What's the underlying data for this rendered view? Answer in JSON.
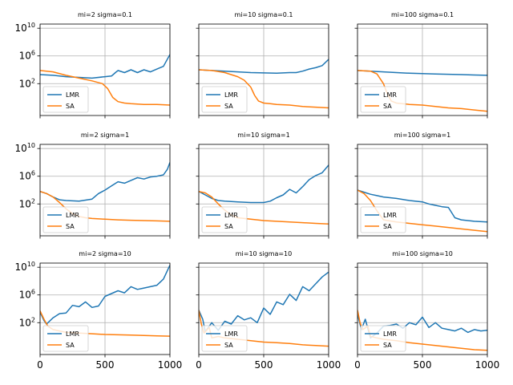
{
  "figure": {
    "background": "#ffffff",
    "series_colors": {
      "LMR": "#1f77b4",
      "SA": "#ff7f0e"
    },
    "grid_color": "#b0b0b0"
  },
  "chart_data": [
    {
      "type": "line",
      "title": "mi=2 sigma=0.1",
      "xlim": [
        0,
        1000
      ],
      "ylim_log10": [
        -2.6,
        10.6
      ],
      "yscale": "log",
      "grid": true,
      "legend": "lower-left",
      "x_ticks": [
        0,
        500,
        1000
      ],
      "x_tick_labels": [
        "0",
        "500",
        "1000"
      ],
      "y_ticks": [
        2,
        6,
        10
      ],
      "series": [
        {
          "name": "LMR",
          "x": [
            0,
            100,
            200,
            300,
            400,
            500,
            550,
            580,
            600,
            650,
            700,
            750,
            800,
            850,
            900,
            950,
            1000
          ],
          "log10_y": [
            3.3,
            3.2,
            3.0,
            2.9,
            2.8,
            3.0,
            3.1,
            3.6,
            3.9,
            3.6,
            4.0,
            3.6,
            4.0,
            3.7,
            4.1,
            4.5,
            6.2
          ]
        },
        {
          "name": "SA",
          "x": [
            0,
            100,
            200,
            300,
            400,
            480,
            520,
            560,
            600,
            650,
            700,
            800,
            900,
            1000
          ],
          "log10_y": [
            3.9,
            3.7,
            3.2,
            2.8,
            2.4,
            2.0,
            1.3,
            0.0,
            -0.6,
            -0.8,
            -0.9,
            -1.0,
            -1.0,
            -1.1
          ]
        }
      ]
    },
    {
      "type": "line",
      "title": "mi=10 sigma=0.1",
      "xlim": [
        0,
        1000
      ],
      "ylim_log10": [
        -2.6,
        10.6
      ],
      "yscale": "log",
      "grid": true,
      "legend": "lower-left",
      "x_ticks": [
        0,
        500,
        1000
      ],
      "x_tick_labels": [
        "0",
        "500",
        "1000"
      ],
      "y_ticks": [
        2,
        6,
        10
      ],
      "series": [
        {
          "name": "LMR",
          "x": [
            0,
            100,
            200,
            300,
            400,
            500,
            600,
            700,
            750,
            800,
            850,
            900,
            950,
            1000
          ],
          "log10_y": [
            4.0,
            3.9,
            3.8,
            3.7,
            3.6,
            3.55,
            3.5,
            3.6,
            3.6,
            3.8,
            4.1,
            4.3,
            4.6,
            5.5
          ]
        },
        {
          "name": "SA",
          "x": [
            0,
            100,
            200,
            300,
            350,
            400,
            430,
            460,
            500,
            550,
            600,
            700,
            800,
            900,
            1000
          ],
          "log10_y": [
            4.0,
            3.9,
            3.6,
            3.0,
            2.5,
            1.5,
            0.3,
            -0.5,
            -0.8,
            -0.9,
            -1.0,
            -1.1,
            -1.3,
            -1.4,
            -1.5
          ]
        }
      ]
    },
    {
      "type": "line",
      "title": "mi=100 sigma=0.1",
      "xlim": [
        0,
        1000
      ],
      "ylim_log10": [
        -2.6,
        10.6
      ],
      "yscale": "log",
      "grid": true,
      "legend": "lower-left",
      "x_ticks": [
        0,
        500,
        1000
      ],
      "x_tick_labels": [
        "0",
        "500",
        "1000"
      ],
      "y_ticks": [
        2,
        6,
        10
      ],
      "series": [
        {
          "name": "LMR",
          "x": [
            0,
            100,
            200,
            300,
            400,
            500,
            600,
            700,
            800,
            900,
            1000
          ],
          "log10_y": [
            3.9,
            3.8,
            3.7,
            3.6,
            3.5,
            3.45,
            3.4,
            3.35,
            3.3,
            3.25,
            3.2
          ]
        },
        {
          "name": "SA",
          "x": [
            0,
            100,
            150,
            200,
            230,
            260,
            300,
            400,
            500,
            600,
            700,
            800,
            900,
            1000
          ],
          "log10_y": [
            3.9,
            3.8,
            3.4,
            2.0,
            0.5,
            -0.5,
            -0.8,
            -1.0,
            -1.1,
            -1.3,
            -1.5,
            -1.6,
            -1.8,
            -2.0
          ]
        }
      ]
    },
    {
      "type": "line",
      "title": "mi=2 sigma=1",
      "xlim": [
        0,
        1000
      ],
      "ylim_log10": [
        -2.6,
        10.6
      ],
      "yscale": "log",
      "grid": true,
      "legend": "lower-left",
      "x_ticks": [
        0,
        500,
        1000
      ],
      "x_tick_labels": [
        "0",
        "500",
        "1000"
      ],
      "y_ticks": [
        2,
        6,
        10
      ],
      "series": [
        {
          "name": "LMR",
          "x": [
            0,
            50,
            100,
            150,
            200,
            300,
            400,
            450,
            500,
            550,
            600,
            650,
            700,
            750,
            800,
            850,
            900,
            950,
            980,
            1000
          ],
          "log10_y": [
            3.8,
            3.5,
            3.0,
            2.6,
            2.5,
            2.4,
            2.7,
            3.5,
            4.0,
            4.6,
            5.2,
            5.0,
            5.4,
            5.8,
            5.6,
            5.9,
            6.0,
            6.2,
            7.0,
            8.0
          ]
        },
        {
          "name": "SA",
          "x": [
            0,
            50,
            100,
            150,
            200,
            250,
            300,
            350,
            400,
            500,
            600,
            700,
            800,
            900,
            1000
          ],
          "log10_y": [
            3.8,
            3.5,
            3.0,
            2.2,
            1.3,
            0.6,
            0.2,
            0.0,
            -0.1,
            -0.2,
            -0.3,
            -0.35,
            -0.4,
            -0.45,
            -0.5
          ]
        }
      ]
    },
    {
      "type": "line",
      "title": "mi=10 sigma=1",
      "xlim": [
        0,
        1000
      ],
      "ylim_log10": [
        -2.6,
        10.6
      ],
      "yscale": "log",
      "grid": true,
      "legend": "lower-left",
      "x_ticks": [
        0,
        500,
        1000
      ],
      "x_tick_labels": [
        "0",
        "500",
        "1000"
      ],
      "y_ticks": [
        2,
        6,
        10
      ],
      "series": [
        {
          "name": "LMR",
          "x": [
            0,
            50,
            100,
            150,
            200,
            300,
            400,
            500,
            550,
            600,
            650,
            700,
            750,
            800,
            850,
            900,
            950,
            1000
          ],
          "log10_y": [
            3.8,
            3.3,
            2.8,
            2.5,
            2.4,
            2.3,
            2.2,
            2.2,
            2.4,
            2.9,
            3.3,
            4.1,
            3.6,
            4.5,
            5.5,
            6.1,
            6.5,
            7.6
          ]
        },
        {
          "name": "SA",
          "x": [
            0,
            50,
            100,
            150,
            200,
            250,
            300,
            400,
            500,
            600,
            700,
            800,
            900,
            1000
          ],
          "log10_y": [
            3.8,
            3.6,
            3.0,
            2.0,
            1.1,
            0.4,
            0.0,
            -0.2,
            -0.4,
            -0.5,
            -0.6,
            -0.7,
            -0.8,
            -0.9
          ]
        }
      ]
    },
    {
      "type": "line",
      "title": "mi=100 sigma=1",
      "xlim": [
        0,
        1000
      ],
      "ylim_log10": [
        -2.6,
        10.6
      ],
      "yscale": "log",
      "grid": true,
      "legend": "lower-left",
      "x_ticks": [
        0,
        500,
        1000
      ],
      "x_tick_labels": [
        "0",
        "500",
        "1000"
      ],
      "y_ticks": [
        2,
        6,
        10
      ],
      "series": [
        {
          "name": "LMR",
          "x": [
            0,
            50,
            100,
            150,
            200,
            300,
            400,
            500,
            550,
            600,
            650,
            700,
            750,
            800,
            900,
            1000
          ],
          "log10_y": [
            4.0,
            3.7,
            3.4,
            3.2,
            3.0,
            2.8,
            2.5,
            2.3,
            2.0,
            1.8,
            1.6,
            1.5,
            0.0,
            -0.3,
            -0.5,
            -0.6
          ]
        },
        {
          "name": "SA",
          "x": [
            0,
            50,
            100,
            150,
            200,
            300,
            400,
            500,
            600,
            700,
            800,
            900,
            1000
          ],
          "log10_y": [
            4.0,
            3.5,
            2.5,
            1.0,
            -0.3,
            -0.6,
            -0.8,
            -1.0,
            -1.2,
            -1.4,
            -1.6,
            -1.8,
            -2.0
          ]
        }
      ]
    },
    {
      "type": "line",
      "title": "mi=2 sigma=10",
      "xlim": [
        0,
        1000
      ],
      "ylim_log10": [
        -2.6,
        10.6
      ],
      "yscale": "log",
      "grid": true,
      "legend": "lower-left",
      "x_ticks": [
        0,
        500,
        1000
      ],
      "x_tick_labels": [
        "0",
        "500",
        "1000"
      ],
      "y_ticks": [
        2,
        6,
        10
      ],
      "series": [
        {
          "name": "LMR",
          "x": [
            0,
            30,
            50,
            100,
            150,
            200,
            250,
            300,
            350,
            400,
            450,
            500,
            550,
            600,
            650,
            700,
            750,
            800,
            850,
            900,
            950,
            1000
          ],
          "log10_y": [
            3.5,
            2.3,
            1.8,
            2.7,
            3.3,
            3.4,
            4.5,
            4.3,
            5.0,
            4.2,
            4.4,
            5.8,
            6.2,
            6.6,
            6.3,
            7.2,
            6.8,
            7.0,
            7.2,
            7.4,
            8.3,
            10.3
          ]
        },
        {
          "name": "SA",
          "x": [
            0,
            30,
            60,
            100,
            150,
            200,
            300,
            400,
            500,
            600,
            700,
            800,
            900,
            1000
          ],
          "log10_y": [
            3.7,
            2.5,
            1.5,
            1.0,
            0.8,
            0.6,
            0.5,
            0.4,
            0.3,
            0.25,
            0.2,
            0.15,
            0.1,
            0.05
          ]
        }
      ]
    },
    {
      "type": "line",
      "title": "mi=10 sigma=10",
      "xlim": [
        0,
        1000
      ],
      "ylim_log10": [
        -2.6,
        10.6
      ],
      "yscale": "log",
      "grid": true,
      "legend": "lower-left",
      "x_ticks": [
        0,
        500,
        1000
      ],
      "x_tick_labels": [
        "0",
        "500",
        "1000"
      ],
      "y_ticks": [
        2,
        6,
        10
      ],
      "series": [
        {
          "name": "LMR",
          "x": [
            0,
            30,
            50,
            100,
            150,
            200,
            250,
            300,
            350,
            400,
            450,
            500,
            550,
            600,
            650,
            700,
            750,
            800,
            850,
            900,
            950,
            1000
          ],
          "log10_y": [
            3.8,
            2.5,
            0.7,
            2.0,
            0.9,
            2.2,
            1.8,
            3.0,
            2.4,
            2.7,
            2.0,
            4.1,
            3.2,
            5.0,
            4.6,
            6.1,
            5.2,
            7.2,
            6.6,
            7.6,
            8.6,
            9.3
          ]
        },
        {
          "name": "SA",
          "x": [
            0,
            20,
            40,
            80,
            100,
            150,
            200,
            300,
            400,
            500,
            600,
            700,
            800,
            900,
            1000
          ],
          "log10_y": [
            3.8,
            1.8,
            0.5,
            1.3,
            -0.2,
            0.0,
            -0.2,
            -0.4,
            -0.6,
            -0.8,
            -0.9,
            -1.0,
            -1.2,
            -1.3,
            -1.4
          ]
        }
      ]
    },
    {
      "type": "line",
      "title": "mi=100 sigma=10",
      "xlim": [
        0,
        1000
      ],
      "ylim_log10": [
        -2.6,
        10.6
      ],
      "yscale": "log",
      "grid": true,
      "legend": "lower-left",
      "x_ticks": [
        0,
        500,
        1000
      ],
      "x_tick_labels": [
        "0",
        "500",
        "1000"
      ],
      "y_ticks": [
        2,
        6,
        10
      ],
      "series": [
        {
          "name": "LMR",
          "x": [
            0,
            30,
            60,
            100,
            150,
            200,
            250,
            300,
            350,
            400,
            450,
            500,
            550,
            600,
            650,
            700,
            750,
            800,
            850,
            900,
            950,
            1000
          ],
          "log10_y": [
            3.2,
            1.0,
            2.5,
            -0.2,
            0.5,
            1.5,
            1.6,
            1.8,
            1.2,
            2.0,
            1.7,
            2.8,
            1.3,
            2.0,
            1.2,
            1.0,
            0.8,
            1.2,
            0.6,
            1.0,
            0.8,
            0.9
          ]
        },
        {
          "name": "SA",
          "x": [
            0,
            20,
            40,
            80,
            100,
            150,
            200,
            300,
            400,
            500,
            600,
            700,
            800,
            900,
            1000
          ],
          "log10_y": [
            3.8,
            2.0,
            1.0,
            1.5,
            0.0,
            -0.2,
            -0.4,
            -0.6,
            -0.9,
            -1.1,
            -1.3,
            -1.5,
            -1.7,
            -1.9,
            -2.0
          ]
        }
      ]
    }
  ]
}
